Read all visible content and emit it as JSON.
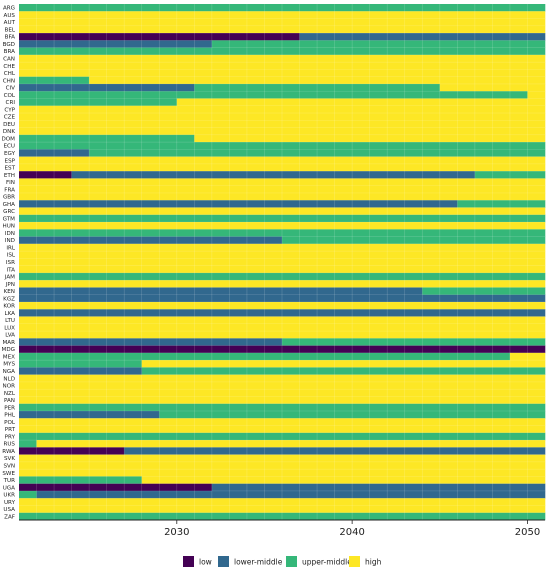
{
  "chart_data": {
    "type": "heatmap",
    "title": "",
    "xlabel": "",
    "ylabel": "",
    "xlim": [
      2021,
      2051
    ],
    "x_ticks": [
      2030,
      2040,
      2050
    ],
    "colors": {
      "low": "#440154",
      "lower-middle": "#31688e",
      "upper-middle": "#35b779",
      "high": "#fde725"
    },
    "grid": true,
    "legend": {
      "placement": "bottom-center",
      "entries": [
        "low",
        "lower-middle",
        "upper-middle",
        "high"
      ]
    },
    "countries": [
      {
        "code": "ARG",
        "segments": [
          {
            "start": 2021,
            "cat": "upper-middle"
          }
        ]
      },
      {
        "code": "AUS",
        "segments": [
          {
            "start": 2021,
            "cat": "high"
          }
        ]
      },
      {
        "code": "AUT",
        "segments": [
          {
            "start": 2021,
            "cat": "high"
          }
        ]
      },
      {
        "code": "BEL",
        "segments": [
          {
            "start": 2021,
            "cat": "high"
          }
        ]
      },
      {
        "code": "BFA",
        "segments": [
          {
            "start": 2021,
            "cat": "low"
          },
          {
            "start": 2037,
            "cat": "lower-middle"
          }
        ]
      },
      {
        "code": "BGD",
        "segments": [
          {
            "start": 2021,
            "cat": "lower-middle"
          },
          {
            "start": 2032,
            "cat": "upper-middle"
          }
        ]
      },
      {
        "code": "BRA",
        "segments": [
          {
            "start": 2021,
            "cat": "upper-middle"
          }
        ]
      },
      {
        "code": "CAN",
        "segments": [
          {
            "start": 2021,
            "cat": "high"
          }
        ]
      },
      {
        "code": "CHE",
        "segments": [
          {
            "start": 2021,
            "cat": "high"
          }
        ]
      },
      {
        "code": "CHL",
        "segments": [
          {
            "start": 2021,
            "cat": "high"
          }
        ]
      },
      {
        "code": "CHN",
        "segments": [
          {
            "start": 2021,
            "cat": "upper-middle"
          },
          {
            "start": 2025,
            "cat": "high"
          }
        ]
      },
      {
        "code": "CIV",
        "segments": [
          {
            "start": 2021,
            "cat": "lower-middle"
          },
          {
            "start": 2031,
            "cat": "upper-middle"
          },
          {
            "start": 2045,
            "cat": "high"
          }
        ]
      },
      {
        "code": "COL",
        "segments": [
          {
            "start": 2021,
            "cat": "upper-middle"
          },
          {
            "start": 2050,
            "cat": "high"
          }
        ]
      },
      {
        "code": "CRI",
        "segments": [
          {
            "start": 2021,
            "cat": "upper-middle"
          },
          {
            "start": 2030,
            "cat": "high"
          }
        ]
      },
      {
        "code": "CYP",
        "segments": [
          {
            "start": 2021,
            "cat": "high"
          }
        ]
      },
      {
        "code": "CZE",
        "segments": [
          {
            "start": 2021,
            "cat": "high"
          }
        ]
      },
      {
        "code": "DEU",
        "segments": [
          {
            "start": 2021,
            "cat": "high"
          }
        ]
      },
      {
        "code": "DNK",
        "segments": [
          {
            "start": 2021,
            "cat": "high"
          }
        ]
      },
      {
        "code": "DOM",
        "segments": [
          {
            "start": 2021,
            "cat": "upper-middle"
          },
          {
            "start": 2031,
            "cat": "high"
          }
        ]
      },
      {
        "code": "ECU",
        "segments": [
          {
            "start": 2021,
            "cat": "upper-middle"
          }
        ]
      },
      {
        "code": "EGY",
        "segments": [
          {
            "start": 2021,
            "cat": "lower-middle"
          },
          {
            "start": 2025,
            "cat": "upper-middle"
          }
        ]
      },
      {
        "code": "ESP",
        "segments": [
          {
            "start": 2021,
            "cat": "high"
          }
        ]
      },
      {
        "code": "EST",
        "segments": [
          {
            "start": 2021,
            "cat": "high"
          }
        ]
      },
      {
        "code": "ETH",
        "segments": [
          {
            "start": 2021,
            "cat": "low"
          },
          {
            "start": 2024,
            "cat": "lower-middle"
          },
          {
            "start": 2047,
            "cat": "upper-middle"
          }
        ]
      },
      {
        "code": "FIN",
        "segments": [
          {
            "start": 2021,
            "cat": "high"
          }
        ]
      },
      {
        "code": "FRA",
        "segments": [
          {
            "start": 2021,
            "cat": "high"
          }
        ]
      },
      {
        "code": "GBR",
        "segments": [
          {
            "start": 2021,
            "cat": "high"
          }
        ]
      },
      {
        "code": "GHA",
        "segments": [
          {
            "start": 2021,
            "cat": "lower-middle"
          },
          {
            "start": 2046,
            "cat": "upper-middle"
          }
        ]
      },
      {
        "code": "GRC",
        "segments": [
          {
            "start": 2021,
            "cat": "high"
          }
        ]
      },
      {
        "code": "GTM",
        "segments": [
          {
            "start": 2021,
            "cat": "upper-middle"
          }
        ]
      },
      {
        "code": "HUN",
        "segments": [
          {
            "start": 2021,
            "cat": "high"
          }
        ]
      },
      {
        "code": "IDN",
        "segments": [
          {
            "start": 2021,
            "cat": "upper-middle"
          }
        ]
      },
      {
        "code": "IND",
        "segments": [
          {
            "start": 2021,
            "cat": "lower-middle"
          },
          {
            "start": 2036,
            "cat": "upper-middle"
          }
        ]
      },
      {
        "code": "IRL",
        "segments": [
          {
            "start": 2021,
            "cat": "high"
          }
        ]
      },
      {
        "code": "ISL",
        "segments": [
          {
            "start": 2021,
            "cat": "high"
          }
        ]
      },
      {
        "code": "ISR",
        "segments": [
          {
            "start": 2021,
            "cat": "high"
          }
        ]
      },
      {
        "code": "ITA",
        "segments": [
          {
            "start": 2021,
            "cat": "high"
          }
        ]
      },
      {
        "code": "JAM",
        "segments": [
          {
            "start": 2021,
            "cat": "upper-middle"
          }
        ]
      },
      {
        "code": "JPN",
        "segments": [
          {
            "start": 2021,
            "cat": "high"
          }
        ]
      },
      {
        "code": "KEN",
        "segments": [
          {
            "start": 2021,
            "cat": "lower-middle"
          },
          {
            "start": 2044,
            "cat": "upper-middle"
          }
        ]
      },
      {
        "code": "KGZ",
        "segments": [
          {
            "start": 2021,
            "cat": "lower-middle"
          }
        ]
      },
      {
        "code": "KOR",
        "segments": [
          {
            "start": 2021,
            "cat": "high"
          }
        ]
      },
      {
        "code": "LKA",
        "segments": [
          {
            "start": 2021,
            "cat": "lower-middle"
          }
        ]
      },
      {
        "code": "LTU",
        "segments": [
          {
            "start": 2021,
            "cat": "high"
          }
        ]
      },
      {
        "code": "LUX",
        "segments": [
          {
            "start": 2021,
            "cat": "high"
          }
        ]
      },
      {
        "code": "LVA",
        "segments": [
          {
            "start": 2021,
            "cat": "high"
          }
        ]
      },
      {
        "code": "MAR",
        "segments": [
          {
            "start": 2021,
            "cat": "lower-middle"
          },
          {
            "start": 2036,
            "cat": "upper-middle"
          }
        ]
      },
      {
        "code": "MDG",
        "segments": [
          {
            "start": 2021,
            "cat": "low"
          }
        ]
      },
      {
        "code": "MEX",
        "segments": [
          {
            "start": 2021,
            "cat": "upper-middle"
          },
          {
            "start": 2049,
            "cat": "high"
          }
        ]
      },
      {
        "code": "MYS",
        "segments": [
          {
            "start": 2021,
            "cat": "upper-middle"
          },
          {
            "start": 2028,
            "cat": "high"
          }
        ]
      },
      {
        "code": "NGA",
        "segments": [
          {
            "start": 2021,
            "cat": "lower-middle"
          },
          {
            "start": 2028,
            "cat": "upper-middle"
          }
        ]
      },
      {
        "code": "NLD",
        "segments": [
          {
            "start": 2021,
            "cat": "high"
          }
        ]
      },
      {
        "code": "NOR",
        "segments": [
          {
            "start": 2021,
            "cat": "high"
          }
        ]
      },
      {
        "code": "NZL",
        "segments": [
          {
            "start": 2021,
            "cat": "high"
          }
        ]
      },
      {
        "code": "PAN",
        "segments": [
          {
            "start": 2021,
            "cat": "high"
          }
        ]
      },
      {
        "code": "PER",
        "segments": [
          {
            "start": 2021,
            "cat": "upper-middle"
          }
        ]
      },
      {
        "code": "PHL",
        "segments": [
          {
            "start": 2021,
            "cat": "lower-middle"
          },
          {
            "start": 2029,
            "cat": "upper-middle"
          }
        ]
      },
      {
        "code": "POL",
        "segments": [
          {
            "start": 2021,
            "cat": "high"
          }
        ]
      },
      {
        "code": "PRT",
        "segments": [
          {
            "start": 2021,
            "cat": "high"
          }
        ]
      },
      {
        "code": "PRY",
        "segments": [
          {
            "start": 2021,
            "cat": "upper-middle"
          }
        ]
      },
      {
        "code": "RUS",
        "segments": [
          {
            "start": 2021,
            "cat": "upper-middle"
          },
          {
            "start": 2022,
            "cat": "high"
          }
        ]
      },
      {
        "code": "RWA",
        "segments": [
          {
            "start": 2021,
            "cat": "low"
          },
          {
            "start": 2027,
            "cat": "lower-middle"
          }
        ]
      },
      {
        "code": "SVK",
        "segments": [
          {
            "start": 2021,
            "cat": "high"
          }
        ]
      },
      {
        "code": "SVN",
        "segments": [
          {
            "start": 2021,
            "cat": "high"
          }
        ]
      },
      {
        "code": "SWE",
        "segments": [
          {
            "start": 2021,
            "cat": "high"
          }
        ]
      },
      {
        "code": "TUR",
        "segments": [
          {
            "start": 2021,
            "cat": "upper-middle"
          },
          {
            "start": 2028,
            "cat": "high"
          }
        ]
      },
      {
        "code": "UGA",
        "segments": [
          {
            "start": 2021,
            "cat": "low"
          },
          {
            "start": 2032,
            "cat": "lower-middle"
          }
        ]
      },
      {
        "code": "UKR",
        "segments": [
          {
            "start": 2021,
            "cat": "upper-middle"
          },
          {
            "start": 2022,
            "cat": "lower-middle"
          }
        ]
      },
      {
        "code": "URY",
        "segments": [
          {
            "start": 2021,
            "cat": "high"
          }
        ]
      },
      {
        "code": "USA",
        "segments": [
          {
            "start": 2021,
            "cat": "high"
          }
        ]
      },
      {
        "code": "ZAF",
        "segments": [
          {
            "start": 2021,
            "cat": "upper-middle"
          }
        ]
      }
    ]
  }
}
